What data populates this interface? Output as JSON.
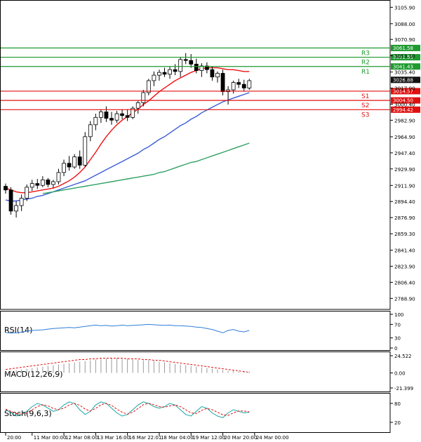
{
  "chart_data": {
    "type": "candlestick",
    "instrument_note": "",
    "price_axis": {
      "range": [
        2780,
        3110
      ],
      "ticks": [
        "3105.90",
        "3088.00",
        "3070.90",
        "3053.10",
        "3035.40",
        "3017.90",
        "3000.40",
        "2982.90",
        "2964.90",
        "2947.40",
        "2929.90",
        "2911.90",
        "2894.40",
        "2876.90",
        "2859.30",
        "2841.40",
        "2823.90",
        "2806.40",
        "2788.90"
      ]
    },
    "time_axis": {
      "ticks": [
        {
          "label": "20:00",
          "i": 0
        },
        {
          "label": "11 Mar 00:00",
          "i": 5
        },
        {
          "label": "12 Mar 08:00",
          "i": 11
        },
        {
          "label": "13 Mar 16:00",
          "i": 17
        },
        {
          "label": "16 Mar 22:01",
          "i": 23
        },
        {
          "label": "18 Mar 04:00",
          "i": 29
        },
        {
          "label": "19 Mar 12:00",
          "i": 35
        },
        {
          "label": "20 Mar 20:00",
          "i": 41
        },
        {
          "label": "24 Mar 00:00",
          "i": 47
        }
      ]
    },
    "candles": [
      [
        2911,
        2914,
        2903,
        2907
      ],
      [
        2907,
        2910,
        2880,
        2884
      ],
      [
        2884,
        2895,
        2877,
        2890
      ],
      [
        2890,
        2902,
        2884,
        2898
      ],
      [
        2898,
        2913,
        2895,
        2910
      ],
      [
        2910,
        2918,
        2906,
        2914
      ],
      [
        2914,
        2919,
        2908,
        2912
      ],
      [
        2912,
        2922,
        2910,
        2918
      ],
      [
        2918,
        2920,
        2910,
        2913
      ],
      [
        2913,
        2918,
        2909,
        2916
      ],
      [
        2916,
        2930,
        2913,
        2926
      ],
      [
        2926,
        2940,
        2922,
        2936
      ],
      [
        2936,
        2944,
        2928,
        2932
      ],
      [
        2932,
        2946,
        2930,
        2943
      ],
      [
        2943,
        2950,
        2930,
        2934
      ],
      [
        2934,
        2970,
        2932,
        2965
      ],
      [
        2965,
        2982,
        2960,
        2978
      ],
      [
        2978,
        2990,
        2972,
        2986
      ],
      [
        2986,
        2995,
        2980,
        2992
      ],
      [
        2992,
        2998,
        2981,
        2985
      ],
      [
        2985,
        2992,
        2978,
        2983
      ],
      [
        2983,
        2993,
        2980,
        2990
      ],
      [
        2990,
        2995,
        2984,
        2988
      ],
      [
        2988,
        2995,
        2982,
        2986
      ],
      [
        2986,
        2998,
        2984,
        2996
      ],
      [
        2996,
        3004,
        2990,
        3002
      ],
      [
        3002,
        3016,
        2998,
        3013
      ],
      [
        3013,
        3028,
        3010,
        3026
      ],
      [
        3026,
        3036,
        3020,
        3032
      ],
      [
        3032,
        3038,
        3026,
        3035
      ],
      [
        3035,
        3040,
        3030,
        3033
      ],
      [
        3033,
        3041,
        3028,
        3038
      ],
      [
        3038,
        3044,
        3032,
        3036
      ],
      [
        3036,
        3052,
        3030,
        3049
      ],
      [
        3049,
        3056,
        3044,
        3048
      ],
      [
        3048,
        3055,
        3040,
        3044
      ],
      [
        3044,
        3050,
        3034,
        3037
      ],
      [
        3037,
        3045,
        3030,
        3042
      ],
      [
        3042,
        3046,
        3034,
        3038
      ],
      [
        3038,
        3042,
        3026,
        3030
      ],
      [
        3030,
        3036,
        3024,
        3034
      ],
      [
        3034,
        3038,
        3010,
        3014
      ],
      [
        3014,
        3020,
        3000,
        3016
      ],
      [
        3016,
        3026,
        3012,
        3024
      ],
      [
        3024,
        3028,
        3018,
        3022
      ],
      [
        3022,
        3027,
        3014,
        3018
      ],
      [
        3018,
        3028,
        3016,
        3026
      ]
    ],
    "ma_series": [
      {
        "name": "MA fast",
        "color": "#ee1111",
        "values": [
          2909,
          2907,
          2905,
          2904,
          2904,
          2905,
          2906,
          2907,
          2908,
          2909,
          2911,
          2914,
          2917,
          2921,
          2926,
          2932,
          2940,
          2948,
          2957,
          2965,
          2972,
          2978,
          2983,
          2987,
          2991,
          2995,
          3000,
          3004,
          3009,
          3014,
          3018,
          3022,
          3026,
          3029,
          3032,
          3035,
          3037,
          3039,
          3040,
          3040,
          3040,
          3039,
          3038,
          3038,
          3037,
          3036,
          3036
        ]
      },
      {
        "name": "MA medium",
        "color": "#3a5dd6",
        "values": [
          2896,
          2895,
          2895,
          2896,
          2897,
          2898,
          2900,
          2901,
          2903,
          2905,
          2907,
          2909,
          2911,
          2913,
          2915,
          2917,
          2920,
          2923,
          2926,
          2929,
          2932,
          2935,
          2938,
          2941,
          2944,
          2947,
          2951,
          2954,
          2958,
          2962,
          2965,
          2969,
          2973,
          2977,
          2980,
          2984,
          2987,
          2991,
          2994,
          2997,
          3000,
          3003,
          3005,
          3007,
          3009,
          3011,
          3013
        ]
      },
      {
        "name": "MA slow",
        "color": "#2ea060",
        "values": [
          null,
          null,
          null,
          null,
          null,
          null,
          null,
          2903,
          2904,
          2905,
          2906,
          2907,
          2908,
          2909,
          2910,
          2911,
          2912,
          2913,
          2914,
          2915,
          2916,
          2917,
          2918,
          2919,
          2920,
          2921,
          2922,
          2923,
          2924,
          2926,
          2927,
          2929,
          2931,
          2933,
          2935,
          2937,
          2938,
          2940,
          2942,
          2944,
          2946,
          2948,
          2950,
          2952,
          2954,
          2956,
          2958
        ]
      }
    ],
    "levels": [
      {
        "name": "R3",
        "value": 3061.58,
        "label": "R3",
        "tag": "3061.58",
        "color": "#1e9a2e"
      },
      {
        "name": "R2",
        "value": 3051.5,
        "label": "R2",
        "tag": "3051.50",
        "color": "#1e9a2e"
      },
      {
        "name": "R1",
        "value": 3041.43,
        "label": "R1",
        "tag": "3041.43",
        "color": "#1e9a2e"
      },
      {
        "name": "S1",
        "value": 3014.57,
        "label": "S1",
        "tag": "3014.57",
        "color": "#e01010"
      },
      {
        "name": "S2",
        "value": 3004.5,
        "label": "S2",
        "tag": "3004.50",
        "color": "#e01010"
      },
      {
        "name": "S3",
        "value": 2994.42,
        "label": "S3",
        "tag": "2994.42",
        "color": "#e01010"
      }
    ],
    "current_price": {
      "value": 3026.88,
      "tag": "3026.88",
      "color": "#111111"
    },
    "rsi": {
      "label": "RSI(14)",
      "range": [
        0,
        100
      ],
      "ticks": [
        "100",
        "70",
        "30",
        "0"
      ],
      "tick_values": [
        100,
        70,
        30,
        0
      ],
      "values": [
        46,
        44,
        45,
        47,
        50,
        52,
        53,
        54,
        56,
        58,
        59,
        60,
        61,
        60,
        62,
        64,
        66,
        68,
        66,
        67,
        65,
        66,
        68,
        66,
        67,
        68,
        69,
        70,
        69,
        68,
        67,
        68,
        66,
        66,
        65,
        64,
        62,
        61,
        58,
        55,
        50,
        45,
        52,
        55,
        50,
        48,
        52
      ]
    },
    "macd": {
      "label": "MACD(12,26,9)",
      "range": [
        -21.399,
        24.522
      ],
      "ticks": [
        "24.522",
        "0.00",
        "-21.399"
      ],
      "tick_values": [
        24.522,
        0,
        -21.399
      ],
      "histogram": [
        2,
        3,
        4,
        5,
        6,
        7,
        8,
        9,
        10,
        11,
        12,
        13,
        14,
        15,
        16,
        17,
        18,
        19,
        20,
        20,
        21,
        21,
        20,
        20,
        19,
        19,
        18,
        18,
        17,
        16,
        15,
        14,
        13,
        12,
        11,
        10,
        9,
        8,
        7,
        6,
        5,
        4,
        3,
        3,
        2,
        2,
        2
      ],
      "signal": [
        5,
        6,
        7,
        8,
        9,
        10,
        11,
        12,
        13,
        14,
        15,
        16,
        17,
        18,
        19,
        19,
        20,
        20,
        21,
        21,
        21,
        21,
        21,
        20,
        20,
        20,
        19,
        19,
        18,
        18,
        17,
        16,
        15,
        14,
        13,
        12,
        11,
        10,
        9,
        8,
        7,
        6,
        5,
        4,
        3,
        2,
        1
      ]
    },
    "stoch": {
      "label": "Stoch(9,6,3)",
      "range": [
        0,
        100
      ],
      "ticks": [
        "80",
        "20"
      ],
      "tick_values": [
        80,
        20
      ],
      "k": [
        60,
        50,
        40,
        45,
        55,
        70,
        80,
        75,
        65,
        55,
        60,
        75,
        85,
        80,
        60,
        45,
        55,
        75,
        85,
        80,
        65,
        50,
        40,
        45,
        60,
        75,
        85,
        80,
        70,
        65,
        70,
        80,
        75,
        60,
        45,
        40,
        55,
        70,
        65,
        50,
        40,
        35,
        50,
        60,
        55,
        50,
        52
      ],
      "d": [
        62,
        55,
        48,
        46,
        50,
        60,
        70,
        76,
        72,
        64,
        60,
        65,
        75,
        80,
        74,
        62,
        56,
        64,
        76,
        80,
        74,
        62,
        52,
        46,
        52,
        64,
        76,
        80,
        76,
        70,
        68,
        72,
        75,
        70,
        60,
        50,
        48,
        58,
        64,
        60,
        52,
        44,
        42,
        50,
        56,
        56,
        53
      ]
    }
  }
}
